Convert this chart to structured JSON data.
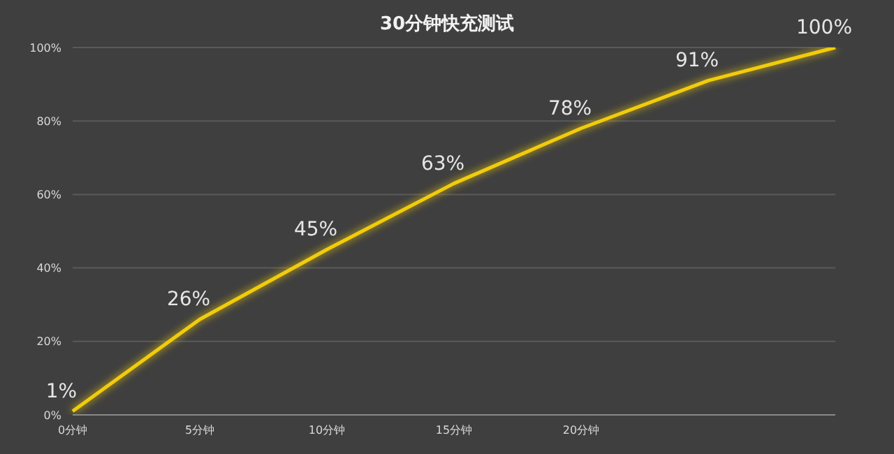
{
  "chart_data": {
    "type": "line",
    "title": "30分钟快充测试",
    "categories": [
      "0分钟",
      "5分钟",
      "10分钟",
      "15分钟",
      "20分钟",
      null,
      null
    ],
    "series": [
      {
        "color": "#f2cc0c",
        "values": [
          1,
          26,
          45,
          63,
          78,
          91,
          100
        ],
        "value_labels": [
          "1%",
          "26%",
          "45%",
          "63%",
          "78%",
          "91%",
          "100%"
        ]
      }
    ],
    "ylim": [
      0,
      100
    ],
    "yticks": [
      {
        "value": 0,
        "label": "0%"
      },
      {
        "value": 20,
        "label": "20%"
      },
      {
        "value": 40,
        "label": "40%"
      },
      {
        "value": 60,
        "label": "60%"
      },
      {
        "value": 80,
        "label": "80%"
      },
      {
        "value": 100,
        "label": "100%"
      }
    ],
    "grid": "y",
    "marker": "none",
    "line_style": "solid",
    "legend": false
  }
}
